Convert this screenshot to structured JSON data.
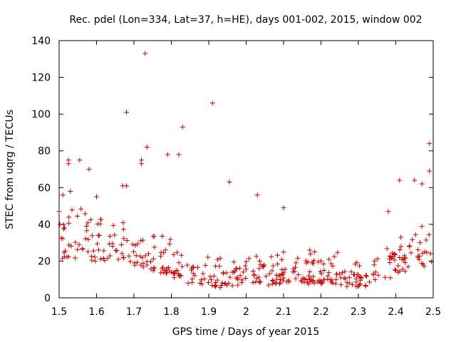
{
  "chart_data": {
    "type": "scatter",
    "title": "Rec. pdel (Lon=334, Lat=37, h=HE), days 001-002, 2015, window 002",
    "xlabel": "GPS time / Days of year 2015",
    "ylabel": "STEC from uqrg / TECUs",
    "xlim": [
      1.5,
      2.5
    ],
    "ylim": [
      0,
      140
    ],
    "xticks": [
      1.5,
      1.6,
      1.7,
      1.8,
      1.9,
      2.0,
      2.1,
      2.2,
      2.3,
      2.4,
      2.5
    ],
    "xtick_labels": [
      "1.5",
      "1.6",
      "1.7",
      "1.8",
      "1.9",
      "2",
      "2.1",
      "2.2",
      "2.3",
      "2.4",
      "2.5"
    ],
    "yticks": [
      0,
      20,
      40,
      60,
      80,
      100,
      120,
      140
    ],
    "ytick_labels": [
      "0",
      "20",
      "40",
      "60",
      "80",
      "100",
      "120",
      "140"
    ],
    "grid": false,
    "marker": "plus",
    "color": "#cc0000",
    "outliers": [
      [
        1.5,
        47
      ],
      [
        1.51,
        56
      ],
      [
        1.525,
        75
      ],
      [
        1.525,
        73
      ],
      [
        1.555,
        75
      ],
      [
        1.53,
        58
      ],
      [
        1.58,
        70
      ],
      [
        1.6,
        55
      ],
      [
        1.67,
        61
      ],
      [
        1.68,
        61
      ],
      [
        1.68,
        101
      ],
      [
        1.72,
        75
      ],
      [
        1.72,
        73
      ],
      [
        1.73,
        133
      ],
      [
        1.735,
        82
      ],
      [
        1.79,
        78
      ],
      [
        1.82,
        78
      ],
      [
        1.83,
        93
      ],
      [
        1.91,
        106
      ],
      [
        1.955,
        63
      ],
      [
        2.03,
        56
      ],
      [
        2.1,
        49
      ],
      [
        2.38,
        47
      ],
      [
        2.41,
        64
      ],
      [
        2.45,
        64
      ],
      [
        2.47,
        62
      ],
      [
        2.49,
        84
      ],
      [
        2.49,
        69
      ]
    ],
    "envelopes": [
      {
        "x": [
          1.5,
          1.55,
          1.6,
          1.65,
          1.7,
          1.75,
          1.8,
          1.85,
          1.9,
          1.95,
          2.0,
          2.05,
          2.1,
          2.15,
          2.2,
          2.25,
          2.3,
          2.35,
          2.4,
          2.45,
          2.5
        ],
        "y": [
          22,
          22,
          21,
          22,
          19,
          16,
          13,
          9,
          7,
          7,
          7,
          8,
          9,
          9,
          9,
          8,
          7,
          8,
          13,
          17,
          20
        ]
      },
      {
        "x": [
          1.5,
          1.55,
          1.6,
          1.65,
          1.7,
          1.75,
          1.8,
          1.85,
          1.9,
          1.95,
          2.0,
          2.05,
          2.1,
          2.15,
          2.2,
          2.25,
          2.3,
          2.35,
          2.4,
          2.45,
          2.5
        ],
        "y": [
          26,
          28,
          27,
          28,
          24,
          20,
          16,
          13,
          10,
          10,
          10,
          11,
          12,
          12,
          12,
          12,
          11,
          12,
          17,
          22,
          25
        ]
      },
      {
        "x": [
          1.5,
          1.55,
          1.6,
          1.65,
          1.7,
          1.75,
          1.8,
          1.85,
          1.9,
          1.95,
          2.0,
          2.05,
          2.1,
          2.15,
          2.2,
          2.25,
          2.3,
          2.35,
          2.4,
          2.45,
          2.5
        ],
        "y": [
          33,
          36,
          33,
          32,
          30,
          26,
          22,
          18,
          15,
          14,
          14,
          15,
          16,
          17,
          17,
          16,
          15,
          16,
          22,
          28,
          32
        ]
      },
      {
        "x": [
          1.5,
          1.55,
          1.6,
          1.65,
          1.7,
          1.75,
          1.8,
          1.85,
          1.9,
          1.95,
          2.0,
          2.05,
          2.1,
          2.15,
          2.2,
          2.25,
          2.3,
          2.35,
          2.4,
          2.45,
          2.5
        ],
        "y": [
          40,
          46,
          40,
          40,
          38,
          33,
          28,
          24,
          20,
          19,
          18,
          20,
          21,
          22,
          23,
          21,
          20,
          21,
          28,
          35,
          40
        ]
      }
    ]
  }
}
